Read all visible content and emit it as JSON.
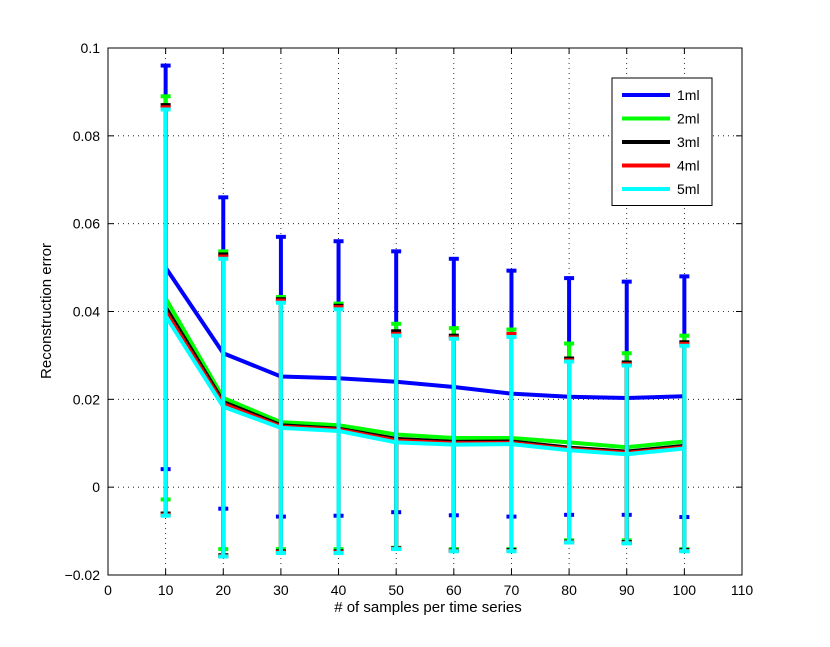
{
  "chart_data": {
    "type": "line",
    "title": "",
    "xlabel": "# of samples per time series",
    "ylabel": "Reconstruction error",
    "xlim": [
      0,
      110
    ],
    "ylim": [
      -0.02,
      0.1
    ],
    "xticks": [
      0,
      10,
      20,
      30,
      40,
      50,
      60,
      70,
      80,
      90,
      100,
      110
    ],
    "yticks": [
      -0.02,
      0,
      0.02,
      0.04,
      0.06,
      0.08,
      0.1
    ],
    "ytick_labels": [
      "−0.02",
      "0",
      "0.02",
      "0.04",
      "0.06",
      "0.08",
      "0.1"
    ],
    "grid": true,
    "legend_position": "top-right",
    "x": [
      10,
      20,
      30,
      40,
      50,
      60,
      70,
      80,
      90,
      100
    ],
    "series": [
      {
        "name": "1ml",
        "color": "#0000ff",
        "values": [
          0.05,
          0.0305,
          0.0252,
          0.0248,
          0.024,
          0.0228,
          0.0213,
          0.0206,
          0.0203,
          0.0207
        ],
        "err_upper": [
          0.096,
          0.066,
          0.057,
          0.056,
          0.0537,
          0.052,
          0.0493,
          0.0476,
          0.0468,
          0.048
        ],
        "err_lower": [
          0.0041,
          -0.0049,
          -0.0067,
          -0.0065,
          -0.0057,
          -0.0064,
          -0.0067,
          -0.0063,
          -0.0063,
          -0.0068
        ]
      },
      {
        "name": "2ml",
        "color": "#00ff00",
        "values": [
          0.043,
          0.0203,
          0.0148,
          0.0141,
          0.012,
          0.0112,
          0.0112,
          0.0102,
          0.0091,
          0.0104
        ],
        "err_upper": [
          0.089,
          0.0537,
          0.0433,
          0.0418,
          0.0372,
          0.0362,
          0.0359,
          0.0327,
          0.0305,
          0.0345
        ],
        "err_lower": [
          -0.0028,
          -0.0141,
          -0.0141,
          -0.0141,
          -0.0138,
          -0.0141,
          -0.0141,
          -0.0121,
          -0.0121,
          -0.0141
        ]
      },
      {
        "name": "3ml",
        "color": "#000000",
        "values": [
          0.041,
          0.0194,
          0.0141,
          0.0133,
          0.011,
          0.0103,
          0.0104,
          0.009,
          0.0081,
          0.0094
        ],
        "err_upper": [
          0.087,
          0.053,
          0.0428,
          0.0413,
          0.0355,
          0.0345,
          0.0346,
          0.0293,
          0.0284,
          0.033
        ],
        "err_lower": [
          -0.006,
          -0.0155,
          -0.0146,
          -0.0146,
          -0.0139,
          -0.0144,
          -0.0143,
          -0.0124,
          -0.0125,
          -0.0143
        ]
      },
      {
        "name": "4ml",
        "color": "#ff0000",
        "values": [
          0.04,
          0.0189,
          0.0138,
          0.0131,
          0.0106,
          0.01,
          0.0101,
          0.0087,
          0.0078,
          0.0091
        ],
        "err_upper": [
          0.0865,
          0.0525,
          0.0425,
          0.041,
          0.0349,
          0.0341,
          0.0349,
          0.0289,
          0.028,
          0.0326
        ],
        "err_lower": [
          -0.0063,
          -0.0157,
          -0.0148,
          -0.0148,
          -0.014,
          -0.0145,
          -0.0145,
          -0.0125,
          -0.0127,
          -0.0145
        ]
      },
      {
        "name": "5ml",
        "color": "#00ffff",
        "values": [
          0.039,
          0.0183,
          0.0135,
          0.0128,
          0.0102,
          0.0097,
          0.0098,
          0.0084,
          0.0075,
          0.0088
        ],
        "err_upper": [
          0.086,
          0.052,
          0.042,
          0.0405,
          0.0345,
          0.0338,
          0.0342,
          0.0286,
          0.0277,
          0.0322
        ],
        "err_lower": [
          -0.0065,
          -0.0158,
          -0.015,
          -0.015,
          -0.0141,
          -0.0146,
          -0.0146,
          -0.0126,
          -0.0128,
          -0.0146
        ]
      }
    ]
  }
}
